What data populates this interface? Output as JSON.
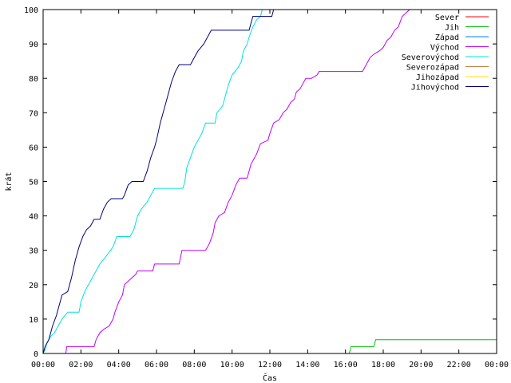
{
  "chart_data": {
    "type": "line",
    "title": "",
    "xlabel": "Čas",
    "ylabel": "krát",
    "xlim": [
      0,
      24
    ],
    "ylim": [
      0,
      100
    ],
    "x_ticks": [
      "00:00",
      "02:00",
      "04:00",
      "06:00",
      "08:00",
      "10:00",
      "12:00",
      "14:00",
      "16:00",
      "18:00",
      "20:00",
      "22:00",
      "00:00"
    ],
    "y_ticks": [
      0,
      10,
      20,
      30,
      40,
      50,
      60,
      70,
      80,
      90,
      100
    ],
    "legend_position": "top-right",
    "grid": false,
    "series": [
      {
        "name": "Sever",
        "color": "#ff0000",
        "points": []
      },
      {
        "name": "Jih",
        "color": "#00c000",
        "points": [
          [
            0,
            0
          ],
          [
            16.2,
            0
          ],
          [
            16.3,
            2
          ],
          [
            17.5,
            2
          ],
          [
            17.6,
            4
          ],
          [
            24,
            4
          ]
        ]
      },
      {
        "name": "Západ",
        "color": "#0080ff",
        "points": []
      },
      {
        "name": "Východ",
        "color": "#c000ff",
        "points": [
          [
            0,
            0
          ],
          [
            1.2,
            0
          ],
          [
            1.25,
            2
          ],
          [
            2.7,
            2
          ],
          [
            2.8,
            4
          ],
          [
            3,
            6
          ],
          [
            3.2,
            7
          ],
          [
            3.5,
            8
          ],
          [
            3.7,
            10
          ],
          [
            3.8,
            12
          ],
          [
            4,
            15
          ],
          [
            4.2,
            17
          ],
          [
            4.3,
            20
          ],
          [
            4.5,
            21
          ],
          [
            4.7,
            22
          ],
          [
            4.9,
            23
          ],
          [
            5,
            24
          ],
          [
            5.8,
            24
          ],
          [
            5.9,
            26
          ],
          [
            7.2,
            26
          ],
          [
            7.35,
            30
          ],
          [
            8.6,
            30
          ],
          [
            8.8,
            32
          ],
          [
            9,
            35
          ],
          [
            9.1,
            38
          ],
          [
            9.3,
            40
          ],
          [
            9.6,
            41
          ],
          [
            9.8,
            44
          ],
          [
            10.0,
            46
          ],
          [
            10.2,
            49
          ],
          [
            10.4,
            51
          ],
          [
            10.8,
            51
          ],
          [
            11,
            55
          ],
          [
            11.3,
            58
          ],
          [
            11.5,
            61
          ],
          [
            11.9,
            62
          ],
          [
            12.0,
            64
          ],
          [
            12.2,
            67
          ],
          [
            12.5,
            68
          ],
          [
            12.7,
            70
          ],
          [
            12.9,
            71
          ],
          [
            13.1,
            73
          ],
          [
            13.3,
            74
          ],
          [
            13.4,
            76
          ],
          [
            13.6,
            77
          ],
          [
            13.9,
            80
          ],
          [
            14.2,
            80
          ],
          [
            14.5,
            81
          ],
          [
            14.6,
            82
          ],
          [
            16.9,
            82
          ],
          [
            17.1,
            84
          ],
          [
            17.3,
            86
          ],
          [
            17.5,
            87
          ],
          [
            17.8,
            88
          ],
          [
            18.0,
            89
          ],
          [
            18.2,
            91
          ],
          [
            18.4,
            92
          ],
          [
            18.6,
            94
          ],
          [
            18.8,
            95
          ],
          [
            19,
            98
          ],
          [
            19.2,
            99
          ],
          [
            19.4,
            100
          ]
        ]
      },
      {
        "name": "Severovýchod",
        "color": "#00e0e0",
        "points": [
          [
            0,
            0
          ],
          [
            0.1,
            1
          ],
          [
            0.2,
            3
          ],
          [
            0.4,
            5
          ],
          [
            0.6,
            6
          ],
          [
            0.8,
            8
          ],
          [
            1,
            10
          ],
          [
            1.3,
            12
          ],
          [
            1.9,
            12
          ],
          [
            2,
            15
          ],
          [
            2.2,
            18
          ],
          [
            2.4,
            20
          ],
          [
            2.6,
            22
          ],
          [
            2.8,
            24
          ],
          [
            3,
            26
          ],
          [
            3.3,
            28
          ],
          [
            3.7,
            31
          ],
          [
            3.9,
            34
          ],
          [
            4.6,
            34
          ],
          [
            4.8,
            36
          ],
          [
            5.0,
            40
          ],
          [
            5.2,
            42
          ],
          [
            5.5,
            44
          ],
          [
            5.7,
            46
          ],
          [
            5.9,
            48
          ],
          [
            7.4,
            48
          ],
          [
            7.5,
            50
          ],
          [
            7.6,
            54
          ],
          [
            7.8,
            57
          ],
          [
            8.0,
            60
          ],
          [
            8.2,
            62
          ],
          [
            8.4,
            64
          ],
          [
            8.6,
            67
          ],
          [
            9.1,
            67
          ],
          [
            9.2,
            70
          ],
          [
            9.5,
            72
          ],
          [
            9.6,
            74
          ],
          [
            9.8,
            78
          ],
          [
            10.0,
            81
          ],
          [
            10.3,
            83
          ],
          [
            10.5,
            85
          ],
          [
            10.6,
            88
          ],
          [
            10.8,
            90
          ],
          [
            10.9,
            92
          ],
          [
            11.1,
            95
          ],
          [
            11.3,
            97
          ],
          [
            11.5,
            98
          ],
          [
            11.6,
            100
          ]
        ]
      },
      {
        "name": "Severozápad",
        "color": "#c08040",
        "points": []
      },
      {
        "name": "Jihozápad",
        "color": "#ffe000",
        "points": []
      },
      {
        "name": "Jihovýchod",
        "color": "#000080",
        "points": [
          [
            0,
            0
          ],
          [
            0.1,
            2
          ],
          [
            0.3,
            4
          ],
          [
            0.5,
            8
          ],
          [
            0.7,
            11
          ],
          [
            0.9,
            15
          ],
          [
            1,
            17
          ],
          [
            1.3,
            18
          ],
          [
            1.5,
            22
          ],
          [
            1.7,
            27
          ],
          [
            1.9,
            31
          ],
          [
            2.1,
            34
          ],
          [
            2.3,
            36
          ],
          [
            2.5,
            37
          ],
          [
            2.7,
            39
          ],
          [
            3.0,
            39
          ],
          [
            3.2,
            42
          ],
          [
            3.4,
            44
          ],
          [
            3.6,
            45
          ],
          [
            4.2,
            45
          ],
          [
            4.3,
            46
          ],
          [
            4.5,
            49
          ],
          [
            4.7,
            50
          ],
          [
            5.3,
            50
          ],
          [
            5.5,
            53
          ],
          [
            5.7,
            57
          ],
          [
            5.9,
            60
          ],
          [
            6.0,
            62
          ],
          [
            6.2,
            67
          ],
          [
            6.4,
            71
          ],
          [
            6.6,
            75
          ],
          [
            6.8,
            79
          ],
          [
            7.0,
            82
          ],
          [
            7.2,
            84
          ],
          [
            7.8,
            84
          ],
          [
            8.0,
            86
          ],
          [
            8.2,
            88
          ],
          [
            8.5,
            90
          ],
          [
            8.7,
            92
          ],
          [
            8.9,
            94
          ],
          [
            10.9,
            94
          ],
          [
            11.0,
            96
          ],
          [
            11.1,
            98
          ],
          [
            12.1,
            98
          ],
          [
            12.2,
            100
          ]
        ]
      }
    ]
  }
}
